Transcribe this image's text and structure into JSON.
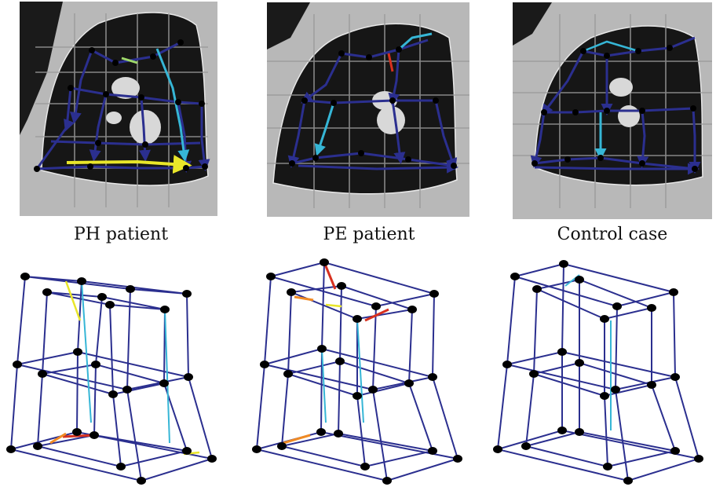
{
  "figure": {
    "captions": {
      "ph": "PH patient",
      "pe": "PE patient",
      "control": "Control case"
    },
    "colors": {
      "edge_main": "#2b2f8f",
      "edge_cyan": "#36b6d6",
      "edge_yellow": "#e9e62a",
      "edge_green": "#9fd86b",
      "edge_red": "#d7301f",
      "edge_orange": "#f08a24",
      "node": "#000000",
      "lung_tissue": "#161616",
      "body_tissue": "#b8b8b8",
      "grid_line": "#9a9a9a",
      "contour": "#e8e8e8"
    }
  }
}
